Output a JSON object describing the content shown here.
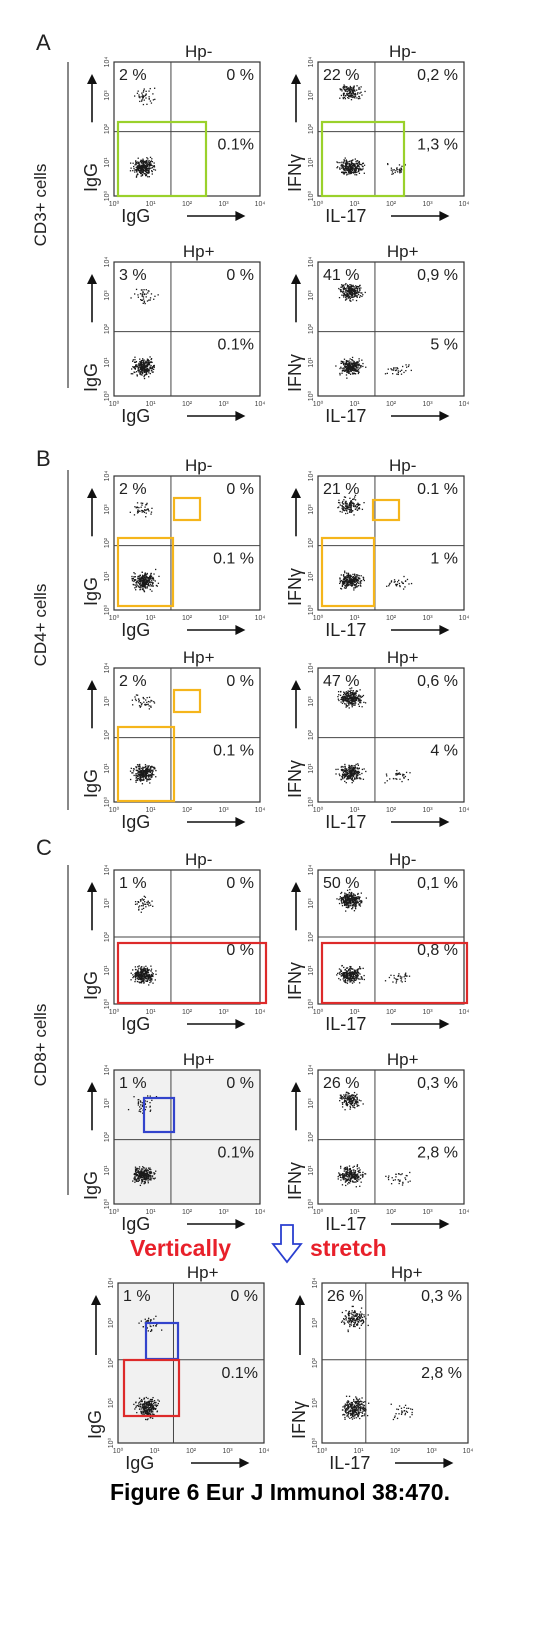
{
  "figure": {
    "caption": "Figure 6 Eur J Immunol 38:470.",
    "annotation": {
      "label_left": "Vertically",
      "label_right": "stretch",
      "color": "#e8202a",
      "arrow_color": "#2a3fd0"
    },
    "sections": [
      {
        "letter": "A",
        "cell_label": "CD3+ cells",
        "panels": [
          {
            "title": "Hp-",
            "ylabel": "IgG",
            "xlabel": "IgG",
            "quadrants": {
              "ul": "2 %",
              "ur": "0 %",
              "lr": "0.1%"
            }
          },
          {
            "title": "Hp-",
            "ylabel": "IFNγ",
            "xlabel": "IL-17",
            "quadrants": {
              "ul": "22 %",
              "ur": "0,2 %",
              "lr": "1,3 %"
            }
          },
          {
            "title": "Hp+",
            "ylabel": "IgG",
            "xlabel": "IgG",
            "quadrants": {
              "ul": "3 %",
              "ur": "0 %",
              "lr": "0.1%"
            }
          },
          {
            "title": "Hp+",
            "ylabel": "IFNγ",
            "xlabel": "IL-17",
            "quadrants": {
              "ul": "41 %",
              "ur": "0,9 %",
              "lr": "5 %"
            }
          }
        ]
      },
      {
        "letter": "B",
        "cell_label": "CD4+ cells",
        "panels": [
          {
            "title": "Hp-",
            "ylabel": "IgG",
            "xlabel": "IgG",
            "quadrants": {
              "ul": "2 %",
              "ur": "0 %",
              "lr": "0.1 %"
            }
          },
          {
            "title": "Hp-",
            "ylabel": "IFNγ",
            "xlabel": "IL-17",
            "quadrants": {
              "ul": "21 %",
              "ur": "0.1 %",
              "lr": "1 %"
            }
          },
          {
            "title": "Hp+",
            "ylabel": "IgG",
            "xlabel": "IgG",
            "quadrants": {
              "ul": "2 %",
              "ur": "0 %",
              "lr": "0.1 %"
            }
          },
          {
            "title": "Hp+",
            "ylabel": "IFNγ",
            "xlabel": "IL-17",
            "quadrants": {
              "ul": "47 %",
              "ur": "0,6 %",
              "lr": "4 %"
            }
          }
        ]
      },
      {
        "letter": "C",
        "cell_label": "CD8+ cells",
        "panels": [
          {
            "title": "Hp-",
            "ylabel": "IgG",
            "xlabel": "IgG",
            "quadrants": {
              "ul": "1 %",
              "ur": "0 %",
              "lr": "0 %"
            }
          },
          {
            "title": "Hp-",
            "ylabel": "IFNγ",
            "xlabel": "IL-17",
            "quadrants": {
              "ul": "50 %",
              "ur": "0,1 %",
              "lr": "0,8 %"
            }
          },
          {
            "title": "Hp+",
            "ylabel": "IgG",
            "xlabel": "IgG",
            "quadrants": {
              "ul": "1 %",
              "ur": "0 %",
              "lr": "0.1%"
            }
          },
          {
            "title": "Hp+",
            "ylabel": "IFNγ",
            "xlabel": "IL-17",
            "quadrants": {
              "ul": "26 %",
              "ur": "0,3 %",
              "lr": "2,8 %"
            }
          }
        ]
      }
    ],
    "stretched": {
      "panels": [
        {
          "title": "Hp+",
          "ylabel": "IgG",
          "xlabel": "IgG",
          "quadrants": {
            "ul": "1 %",
            "ur": "0 %",
            "lr": "0.1%"
          }
        },
        {
          "title": "Hp+",
          "ylabel": "IFNγ",
          "xlabel": "IL-17",
          "quadrants": {
            "ul": "26 %",
            "ur": "0,3 %",
            "lr": "2,8 %"
          }
        }
      ]
    },
    "tick_labels": [
      "10⁰",
      "10¹",
      "10²",
      "10³",
      "10⁴"
    ],
    "highlight_colors": {
      "green": "#9ad12b",
      "orange": "#f5b51b",
      "red": "#dd2a2a",
      "blue": "#3344cc"
    }
  }
}
